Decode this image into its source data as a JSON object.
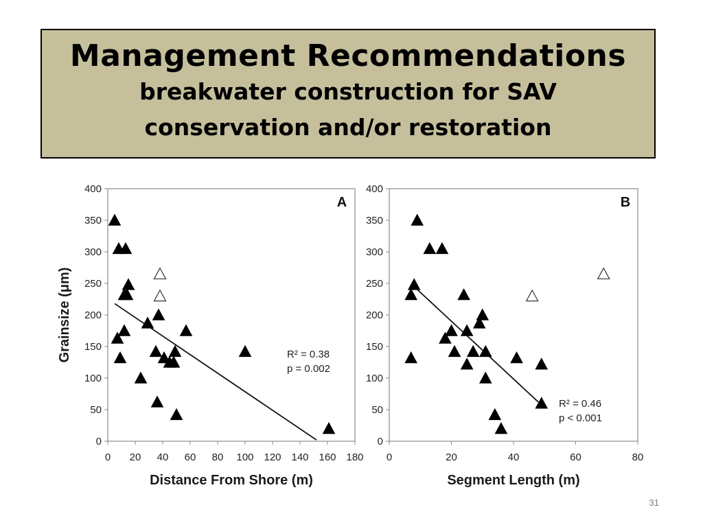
{
  "slide": {
    "title": "Management Recommendations",
    "subtitle_line1": "breakwater construction for SAV",
    "subtitle_line2": "conservation and/or restoration",
    "slide_number": "31"
  },
  "chart_data": [
    {
      "type": "scatter",
      "panel_label": "A",
      "xlabel": "Distance From Shore (m)",
      "ylabel": "Grainsize (μm)",
      "xlim": [
        0,
        180
      ],
      "ylim": [
        0,
        400
      ],
      "x_ticks": [
        0,
        20,
        40,
        60,
        80,
        100,
        120,
        140,
        160,
        180
      ],
      "y_ticks": [
        0,
        50,
        100,
        150,
        200,
        250,
        300,
        350,
        400
      ],
      "annotation_line1": "R² = 0.38",
      "annotation_line2": "p = 0.002",
      "filled_points": [
        {
          "x": 5,
          "y": 350
        },
        {
          "x": 8,
          "y": 305
        },
        {
          "x": 13,
          "y": 305
        },
        {
          "x": 15,
          "y": 248
        },
        {
          "x": 12,
          "y": 232
        },
        {
          "x": 14,
          "y": 232
        },
        {
          "x": 37,
          "y": 200
        },
        {
          "x": 29,
          "y": 187
        },
        {
          "x": 12,
          "y": 175
        },
        {
          "x": 7,
          "y": 163
        },
        {
          "x": 9,
          "y": 132
        },
        {
          "x": 57,
          "y": 175
        },
        {
          "x": 35,
          "y": 142
        },
        {
          "x": 41,
          "y": 132
        },
        {
          "x": 45,
          "y": 125
        },
        {
          "x": 48,
          "y": 125
        },
        {
          "x": 49,
          "y": 142
        },
        {
          "x": 24,
          "y": 100
        },
        {
          "x": 36,
          "y": 62
        },
        {
          "x": 50,
          "y": 42
        },
        {
          "x": 100,
          "y": 142
        },
        {
          "x": 161,
          "y": 20
        }
      ],
      "open_points": [
        {
          "x": 38,
          "y": 265
        },
        {
          "x": 38,
          "y": 230
        }
      ],
      "fit_line": {
        "x": [
          5,
          152
        ],
        "y": [
          218,
          2
        ]
      }
    },
    {
      "type": "scatter",
      "panel_label": "B",
      "xlabel": "Segment Length (m)",
      "ylabel": "",
      "xlim": [
        0,
        80
      ],
      "ylim": [
        0,
        400
      ],
      "x_ticks": [
        0,
        20,
        40,
        60,
        80
      ],
      "y_ticks": [
        0,
        50,
        100,
        150,
        200,
        250,
        300,
        350,
        400
      ],
      "annotation_line1": "R² = 0.46",
      "annotation_line2": "p < 0.001",
      "filled_points": [
        {
          "x": 9,
          "y": 350
        },
        {
          "x": 13,
          "y": 305
        },
        {
          "x": 17,
          "y": 305
        },
        {
          "x": 8,
          "y": 248
        },
        {
          "x": 7,
          "y": 232
        },
        {
          "x": 24,
          "y": 232
        },
        {
          "x": 30,
          "y": 200
        },
        {
          "x": 29,
          "y": 187
        },
        {
          "x": 20,
          "y": 175
        },
        {
          "x": 25,
          "y": 175
        },
        {
          "x": 18,
          "y": 163
        },
        {
          "x": 21,
          "y": 142
        },
        {
          "x": 27,
          "y": 142
        },
        {
          "x": 31,
          "y": 142
        },
        {
          "x": 7,
          "y": 132
        },
        {
          "x": 25,
          "y": 122
        },
        {
          "x": 41,
          "y": 132
        },
        {
          "x": 49,
          "y": 122
        },
        {
          "x": 31,
          "y": 100
        },
        {
          "x": 49,
          "y": 60
        },
        {
          "x": 34,
          "y": 42
        },
        {
          "x": 36,
          "y": 20
        }
      ],
      "open_points": [
        {
          "x": 46,
          "y": 230
        },
        {
          "x": 69,
          "y": 265
        }
      ],
      "fit_line": {
        "x": [
          8,
          48
        ],
        "y": [
          245,
          62
        ]
      }
    }
  ]
}
